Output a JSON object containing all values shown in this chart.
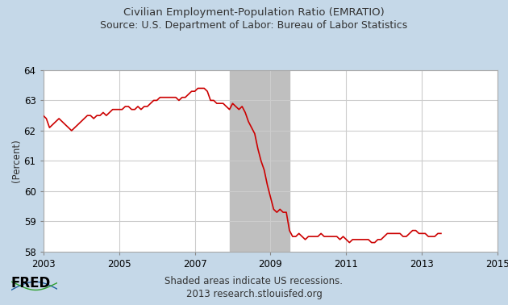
{
  "title_line1": "Civilian Employment-Population Ratio (EMRATIO)",
  "title_line2": "Source: U.S. Department of Labor: Bureau of Labor Statistics",
  "ylabel": "(Percent)",
  "footer_line1": "Shaded areas indicate US recessions.",
  "footer_line2": "2013 research.stlouisfed.org",
  "xlim": [
    2003,
    2015
  ],
  "ylim": [
    58,
    64
  ],
  "yticks": [
    58,
    59,
    60,
    61,
    62,
    63,
    64
  ],
  "xticks": [
    2003,
    2005,
    2007,
    2009,
    2011,
    2013,
    2015
  ],
  "recession_start": 2007.917,
  "recession_end": 2009.5,
  "background_outer": "#c5d8e8",
  "background_plot": "#ffffff",
  "line_color": "#cc0000",
  "recession_color": "#bfbfbf",
  "grid_color": "#cccccc",
  "title_color": "#333333",
  "fred_color": "#000000",
  "series": {
    "dates": [
      2003.0,
      2003.083,
      2003.167,
      2003.25,
      2003.333,
      2003.417,
      2003.5,
      2003.583,
      2003.667,
      2003.75,
      2003.833,
      2003.917,
      2004.0,
      2004.083,
      2004.167,
      2004.25,
      2004.333,
      2004.417,
      2004.5,
      2004.583,
      2004.667,
      2004.75,
      2004.833,
      2004.917,
      2005.0,
      2005.083,
      2005.167,
      2005.25,
      2005.333,
      2005.417,
      2005.5,
      2005.583,
      2005.667,
      2005.75,
      2005.833,
      2005.917,
      2006.0,
      2006.083,
      2006.167,
      2006.25,
      2006.333,
      2006.417,
      2006.5,
      2006.583,
      2006.667,
      2006.75,
      2006.833,
      2006.917,
      2007.0,
      2007.083,
      2007.167,
      2007.25,
      2007.333,
      2007.417,
      2007.5,
      2007.583,
      2007.667,
      2007.75,
      2007.833,
      2007.917,
      2008.0,
      2008.083,
      2008.167,
      2008.25,
      2008.333,
      2008.417,
      2008.5,
      2008.583,
      2008.667,
      2008.75,
      2008.833,
      2008.917,
      2009.0,
      2009.083,
      2009.167,
      2009.25,
      2009.333,
      2009.417,
      2009.5,
      2009.583,
      2009.667,
      2009.75,
      2009.833,
      2009.917,
      2010.0,
      2010.083,
      2010.167,
      2010.25,
      2010.333,
      2010.417,
      2010.5,
      2010.583,
      2010.667,
      2010.75,
      2010.833,
      2010.917,
      2011.0,
      2011.083,
      2011.167,
      2011.25,
      2011.333,
      2011.417,
      2011.5,
      2011.583,
      2011.667,
      2011.75,
      2011.833,
      2011.917,
      2012.0,
      2012.083,
      2012.167,
      2012.25,
      2012.333,
      2012.417,
      2012.5,
      2012.583,
      2012.667,
      2012.75,
      2012.833,
      2012.917,
      2013.0,
      2013.083,
      2013.167,
      2013.25,
      2013.333,
      2013.417,
      2013.5
    ],
    "values": [
      62.5,
      62.4,
      62.1,
      62.2,
      62.3,
      62.4,
      62.3,
      62.2,
      62.1,
      62.0,
      62.1,
      62.2,
      62.3,
      62.4,
      62.5,
      62.5,
      62.4,
      62.5,
      62.5,
      62.6,
      62.5,
      62.6,
      62.7,
      62.7,
      62.7,
      62.7,
      62.8,
      62.8,
      62.7,
      62.7,
      62.8,
      62.7,
      62.8,
      62.8,
      62.9,
      63.0,
      63.0,
      63.1,
      63.1,
      63.1,
      63.1,
      63.1,
      63.1,
      63.0,
      63.1,
      63.1,
      63.2,
      63.3,
      63.3,
      63.4,
      63.4,
      63.4,
      63.3,
      63.0,
      63.0,
      62.9,
      62.9,
      62.9,
      62.8,
      62.7,
      62.9,
      62.8,
      62.7,
      62.8,
      62.6,
      62.3,
      62.1,
      61.9,
      61.4,
      61.0,
      60.7,
      60.2,
      59.8,
      59.4,
      59.3,
      59.4,
      59.3,
      59.3,
      58.7,
      58.5,
      58.5,
      58.6,
      58.5,
      58.4,
      58.5,
      58.5,
      58.5,
      58.5,
      58.6,
      58.5,
      58.5,
      58.5,
      58.5,
      58.5,
      58.4,
      58.5,
      58.4,
      58.3,
      58.4,
      58.4,
      58.4,
      58.4,
      58.4,
      58.4,
      58.3,
      58.3,
      58.4,
      58.4,
      58.5,
      58.6,
      58.6,
      58.6,
      58.6,
      58.6,
      58.5,
      58.5,
      58.6,
      58.7,
      58.7,
      58.6,
      58.6,
      58.6,
      58.5,
      58.5,
      58.5,
      58.6,
      58.6
    ]
  }
}
